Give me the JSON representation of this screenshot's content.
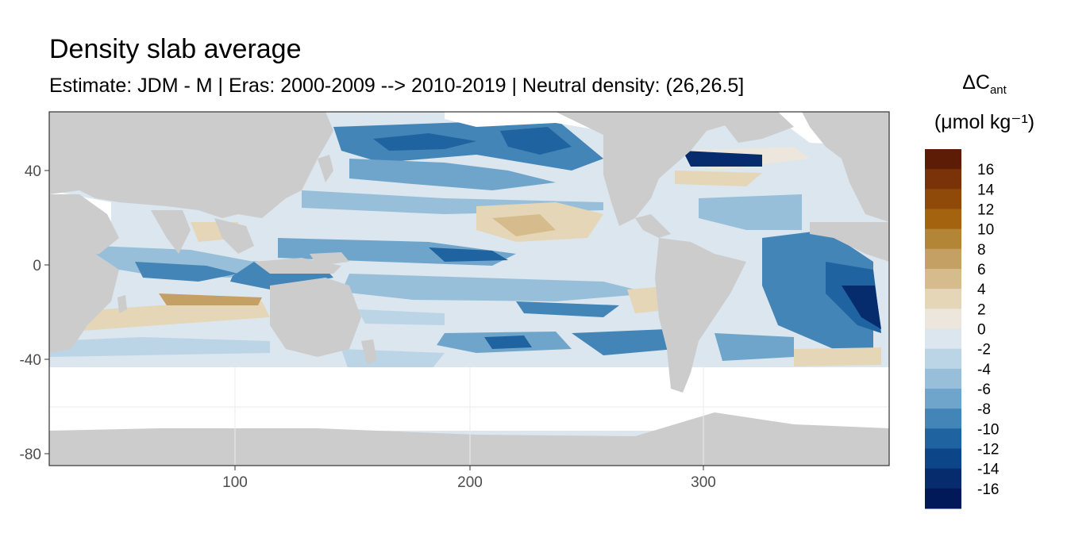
{
  "title": "Density slab average",
  "subtitle": "Estimate: JDM - M | Eras: 2000-2009 --> 2010-2019 | Neutral density: (26,26.5]",
  "legend": {
    "title_main": "ΔC",
    "title_sub": "ant",
    "title_unit": "(μmol kg⁻¹)",
    "labels": [
      "16",
      "14",
      "12",
      "10",
      "8",
      "6",
      "4",
      "2",
      "0",
      "-2",
      "-4",
      "-6",
      "-8",
      "-10",
      "-12",
      "-14",
      "-16"
    ],
    "colors": [
      "#5d1c06",
      "#7a3308",
      "#8f4a09",
      "#a4640f",
      "#b38536",
      "#c5a064",
      "#d6bc8c",
      "#e6d6b8",
      "#ece6dc",
      "#dbe6ee",
      "#bcd5e6",
      "#97bfd9",
      "#6fa5cb",
      "#4385b6",
      "#1f63a0",
      "#0d4688",
      "#062c6e",
      "#021959"
    ]
  },
  "colors": {
    "land": "#cccccc",
    "no_data": "#ffffff",
    "panel_border": "#333333",
    "grid": "#ebebeb"
  },
  "chart_data": {
    "type": "heatmap",
    "xlabel": "",
    "ylabel": "",
    "xlim": [
      20,
      380
    ],
    "ylim": [
      -85,
      65
    ],
    "x_ticks": [
      "100",
      "200",
      "300"
    ],
    "y_ticks": [
      "40",
      "0",
      "-40",
      "-80"
    ],
    "value_range": [
      -17,
      17
    ],
    "grid": true,
    "legend_position": "right"
  }
}
